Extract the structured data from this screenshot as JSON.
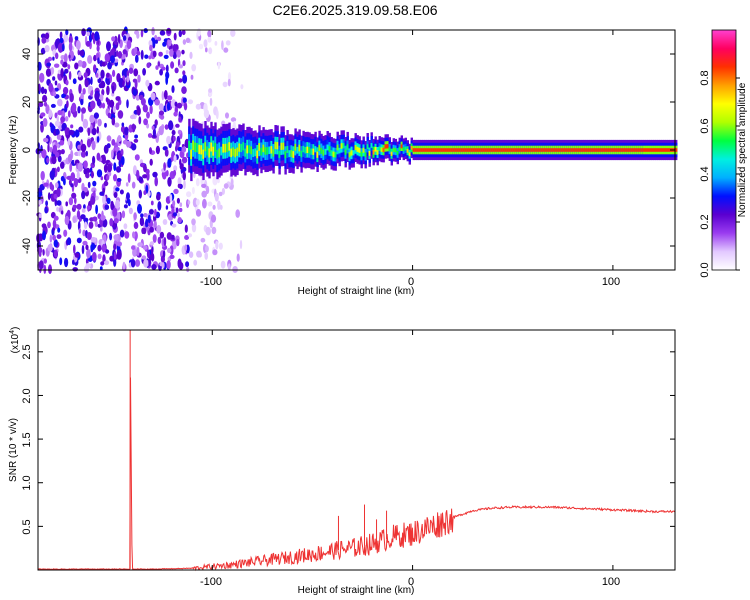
{
  "title": "C2E6.2025.319.09.58.E06",
  "chart_data": [
    {
      "type": "heatmap",
      "name": "spectrogram",
      "xlabel": "Height of straight line (km)",
      "ylabel": "Frequency (Hz)",
      "xlim": [
        -187,
        131
      ],
      "ylim": [
        -50,
        50
      ],
      "x_ticks": [
        -100,
        0,
        100
      ],
      "y_ticks": [
        -40,
        -20,
        0,
        20,
        40
      ],
      "colorbar": {
        "label": "Normalized spectral amplitude",
        "range": [
          0,
          1
        ],
        "ticks": [
          "0.0",
          "0.2",
          "0.4",
          "0.6",
          "0.8"
        ],
        "colors": [
          "#ffffff",
          "#e2c8ff",
          "#9a3cf0",
          "#5a00d0",
          "#0010ff",
          "#00b0ff",
          "#00f0e0",
          "#00ff40",
          "#b0ff00",
          "#ffff00",
          "#ffa000",
          "#ff3000",
          "#ff0060",
          "#ff40d0"
        ]
      },
      "features": {
        "noise_region_x": [
          -187,
          -85
        ],
        "noise_amplitude": 0.25,
        "signal_start_x": -112,
        "signal_center_freq_hz": 0,
        "signal_peak_amplitude_beyond_0km": 0.85,
        "signal_band_halfwidth_hz": [
          8,
          3
        ]
      }
    },
    {
      "type": "line",
      "name": "snr",
      "xlabel": "Height of straight line (km)",
      "ylabel": "SNR (10 * v/v)",
      "y_multiplier": "(x10",
      "y_multiplier_exp": "4",
      "xlim": [
        -187,
        131
      ],
      "ylim": [
        0,
        2.75
      ],
      "x_ticks": [
        -100,
        0,
        100
      ],
      "y_ticks": [
        "0.5",
        "1.0",
        "1.5",
        "2.0",
        "2.5"
      ],
      "series": [
        {
          "name": "SNR",
          "color": "#ee3333",
          "x": [
            -187,
            -170,
            -145,
            -141,
            -141,
            -140,
            -130,
            -110,
            -100,
            -90,
            -80,
            -70,
            -60,
            -50,
            -40,
            -30,
            -20,
            -10,
            0,
            10,
            20,
            30,
            40,
            50,
            60,
            70,
            80,
            90,
            100,
            110,
            120,
            131
          ],
          "y": [
            0.01,
            0.01,
            0.01,
            0.01,
            2.75,
            0.01,
            0.01,
            0.02,
            0.04,
            0.06,
            0.09,
            0.12,
            0.15,
            0.18,
            0.22,
            0.25,
            0.3,
            0.38,
            0.42,
            0.5,
            0.6,
            0.68,
            0.71,
            0.72,
            0.72,
            0.72,
            0.71,
            0.7,
            0.69,
            0.68,
            0.67,
            0.67
          ]
        }
      ],
      "spikes": [
        {
          "x": -37,
          "y": 0.62
        },
        {
          "x": -24,
          "y": 0.75
        },
        {
          "x": -18,
          "y": 0.58
        },
        {
          "x": -13,
          "y": 0.68
        }
      ]
    }
  ]
}
